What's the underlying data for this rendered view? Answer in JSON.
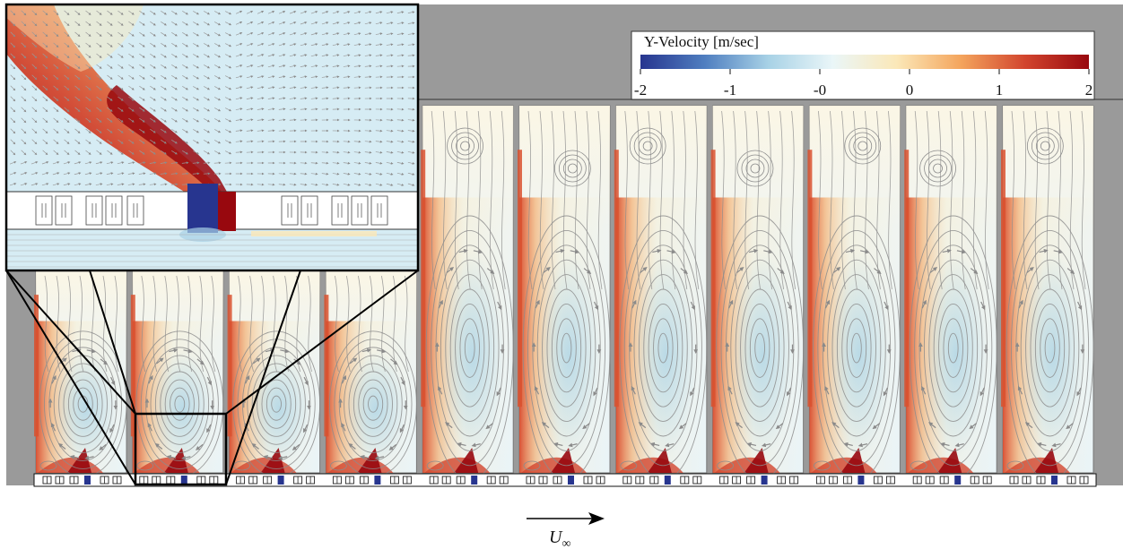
{
  "figure": {
    "colorbar": {
      "title": "Y-Velocity [m/sec]",
      "ticks": [
        "-2",
        "-1",
        "-0",
        "0",
        "1",
        "2"
      ],
      "stops": [
        "#27358f",
        "#4f7ec0",
        "#a8d2e6",
        "#eaf6f8",
        "#fbe8b8",
        "#f4a55d",
        "#d2452e",
        "#98080e"
      ]
    },
    "flow": {
      "symbol": "U",
      "subscript": "∞"
    },
    "colors": {
      "background_band": "#9a9a9a",
      "streamline": "#8c8c8c",
      "arrow": "#8a8a8a",
      "cavity_base": "#eaf4f8",
      "frame": "#111111"
    },
    "cavity_count": 11
  }
}
